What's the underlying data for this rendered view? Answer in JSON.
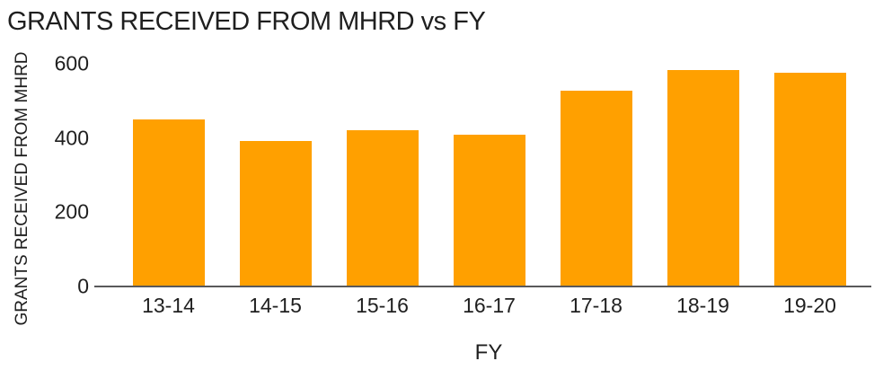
{
  "chart_data": {
    "type": "bar",
    "title": "GRANTS RECEIVED FROM MHRD vs FY",
    "xlabel": "FY",
    "ylabel": "GRANTS RECEIVED FROM MHRD",
    "categories": [
      "13-14",
      "14-15",
      "15-16",
      "16-17",
      "17-18",
      "18-19",
      "19-20"
    ],
    "values": [
      450,
      392,
      420,
      408,
      527,
      584,
      577
    ],
    "ylim": [
      0,
      600
    ],
    "yticks": [
      0,
      200,
      400,
      600
    ],
    "grid": false,
    "legend": "none",
    "colors": {
      "bar": "#FFA000",
      "axis": "#59595B",
      "text": "#1F1F1F",
      "background": "#FFFFFF"
    }
  }
}
